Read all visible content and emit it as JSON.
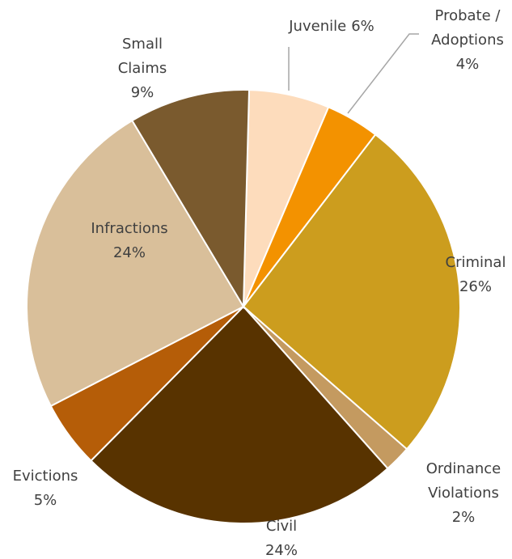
{
  "chart_data": {
    "type": "pie",
    "categories": [
      "Juvenile",
      "Probate / Adoptions",
      "Criminal",
      "Ordinance Violations",
      "Civil",
      "Evictions",
      "Infractions",
      "Small Claims"
    ],
    "values": [
      6,
      4,
      26,
      2,
      24,
      5,
      24,
      9
    ],
    "value_labels": [
      "6%",
      "4%",
      "26%",
      "2%",
      "24%",
      "5%",
      "24%",
      "9%"
    ],
    "colors": [
      "#fddcbc",
      "#f39200",
      "#cc9d1e",
      "#c49a60",
      "#583300",
      "#b55d08",
      "#d9bf9a",
      "#7a5a2e"
    ]
  }
}
